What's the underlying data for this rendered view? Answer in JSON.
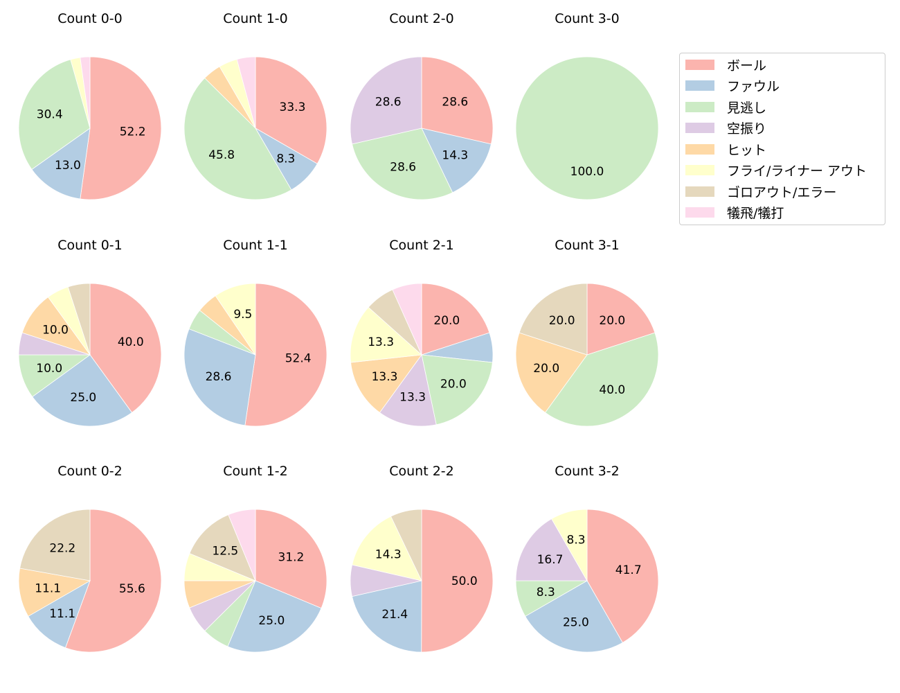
{
  "legend": {
    "items": [
      {
        "label": "ボール",
        "color": "#fbb4ae"
      },
      {
        "label": "ファウル",
        "color": "#b3cde3"
      },
      {
        "label": "見逃し",
        "color": "#ccebc5"
      },
      {
        "label": "空振り",
        "color": "#decbe4"
      },
      {
        "label": "ヒット",
        "color": "#fed9a6"
      },
      {
        "label": "フライ/ライナー アウト",
        "color": "#ffffcc"
      },
      {
        "label": "ゴロアウト/エラー",
        "color": "#e5d8bd"
      },
      {
        "label": "犠飛/犠打",
        "color": "#fddaec"
      }
    ]
  },
  "chart_data": [
    {
      "type": "pie",
      "title": "Count 0-0",
      "categories": [
        "ボール",
        "ファウル",
        "見逃し",
        "空振り",
        "ヒット",
        "フライ/ライナー アウト",
        "ゴロアウト/エラー",
        "犠飛/犠打"
      ],
      "values": [
        52.2,
        13.0,
        30.4,
        0,
        0,
        2.2,
        0,
        2.2
      ],
      "labels_shown": [
        "52.2",
        "13.0",
        "30.4"
      ]
    },
    {
      "type": "pie",
      "title": "Count 1-0",
      "categories": [
        "ボール",
        "ファウル",
        "見逃し",
        "空振り",
        "ヒット",
        "フライ/ライナー アウト",
        "ゴロアウト/エラー",
        "犠飛/犠打"
      ],
      "values": [
        33.3,
        8.3,
        45.8,
        0,
        4.2,
        4.2,
        0,
        4.2
      ],
      "labels_shown": [
        "33.3",
        "8.3",
        "45.8"
      ]
    },
    {
      "type": "pie",
      "title": "Count 2-0",
      "categories": [
        "ボール",
        "ファウル",
        "見逃し",
        "空振り",
        "ヒット",
        "フライ/ライナー アウト",
        "ゴロアウト/エラー",
        "犠飛/犠打"
      ],
      "values": [
        28.6,
        14.3,
        28.6,
        28.6,
        0,
        0,
        0,
        0
      ],
      "labels_shown": [
        "28.6",
        "14.3",
        "28.6",
        "28.6"
      ]
    },
    {
      "type": "pie",
      "title": "Count 3-0",
      "categories": [
        "ボール",
        "ファウル",
        "見逃し",
        "空振り",
        "ヒット",
        "フライ/ライナー アウト",
        "ゴロアウト/エラー",
        "犠飛/犠打"
      ],
      "values": [
        0,
        0,
        100.0,
        0,
        0,
        0,
        0,
        0
      ],
      "labels_shown": [
        "100.0"
      ]
    },
    {
      "type": "pie",
      "title": "Count 0-1",
      "categories": [
        "ボール",
        "ファウル",
        "見逃し",
        "空振り",
        "ヒット",
        "フライ/ライナー アウト",
        "ゴロアウト/エラー",
        "犠飛/犠打"
      ],
      "values": [
        40.0,
        25.0,
        10.0,
        5.0,
        10.0,
        5.0,
        5.0,
        0
      ],
      "labels_shown": [
        "40.0",
        "25.0",
        "10.0",
        "10.0"
      ]
    },
    {
      "type": "pie",
      "title": "Count 1-1",
      "categories": [
        "ボール",
        "ファウル",
        "見逃し",
        "空振り",
        "ヒット",
        "フライ/ライナー アウト",
        "ゴロアウト/エラー",
        "犠飛/犠打"
      ],
      "values": [
        52.4,
        28.6,
        4.8,
        0,
        4.8,
        9.5,
        0,
        0
      ],
      "labels_shown": [
        "52.4",
        "28.6",
        "9.5"
      ]
    },
    {
      "type": "pie",
      "title": "Count 2-1",
      "categories": [
        "ボール",
        "ファウル",
        "見逃し",
        "空振り",
        "ヒット",
        "フライ/ライナー アウト",
        "ゴロアウト/エラー",
        "犠飛/犠打"
      ],
      "values": [
        20.0,
        6.7,
        20.0,
        13.3,
        13.3,
        13.3,
        6.7,
        6.7
      ],
      "labels_shown": [
        "20.0",
        "20.0",
        "13.3",
        "13.3",
        "13.3"
      ]
    },
    {
      "type": "pie",
      "title": "Count 3-1",
      "categories": [
        "ボール",
        "ファウル",
        "見逃し",
        "空振り",
        "ヒット",
        "フライ/ライナー アウト",
        "ゴロアウト/エラー",
        "犠飛/犠打"
      ],
      "values": [
        20.0,
        0,
        40.0,
        0,
        20.0,
        0,
        20.0,
        0
      ],
      "labels_shown": [
        "20.0",
        "40.0",
        "20.0",
        "20.0"
      ]
    },
    {
      "type": "pie",
      "title": "Count 0-2",
      "categories": [
        "ボール",
        "ファウル",
        "見逃し",
        "空振り",
        "ヒット",
        "フライ/ライナー アウト",
        "ゴロアウト/エラー",
        "犠飛/犠打"
      ],
      "values": [
        55.6,
        11.1,
        0,
        0,
        11.1,
        0,
        22.2,
        0
      ],
      "labels_shown": [
        "55.6",
        "11.1",
        "11.1",
        "22.2"
      ]
    },
    {
      "type": "pie",
      "title": "Count 1-2",
      "categories": [
        "ボール",
        "ファウル",
        "見逃し",
        "空振り",
        "ヒット",
        "フライ/ライナー アウト",
        "ゴロアウト/エラー",
        "犠飛/犠打"
      ],
      "values": [
        31.2,
        25.0,
        6.2,
        6.2,
        6.2,
        6.2,
        12.5,
        6.2
      ],
      "labels_shown": [
        "31.2",
        "25.0",
        "12.5"
      ]
    },
    {
      "type": "pie",
      "title": "Count 2-2",
      "categories": [
        "ボール",
        "ファウル",
        "見逃し",
        "空振り",
        "ヒット",
        "フライ/ライナー アウト",
        "ゴロアウト/エラー",
        "犠飛/犠打"
      ],
      "values": [
        50.0,
        21.4,
        0,
        7.1,
        0,
        14.3,
        7.1,
        0
      ],
      "labels_shown": [
        "50.0",
        "21.4",
        "14.3"
      ]
    },
    {
      "type": "pie",
      "title": "Count 3-2",
      "categories": [
        "ボール",
        "ファウル",
        "見逃し",
        "空振り",
        "ヒット",
        "フライ/ライナー アウト",
        "ゴロアウト/エラー",
        "犠飛/犠打"
      ],
      "values": [
        41.7,
        25.0,
        8.3,
        16.7,
        0,
        8.3,
        0,
        0
      ],
      "labels_shown": [
        "41.7",
        "25.0",
        "8.3",
        "16.7",
        "8.3"
      ]
    }
  ]
}
